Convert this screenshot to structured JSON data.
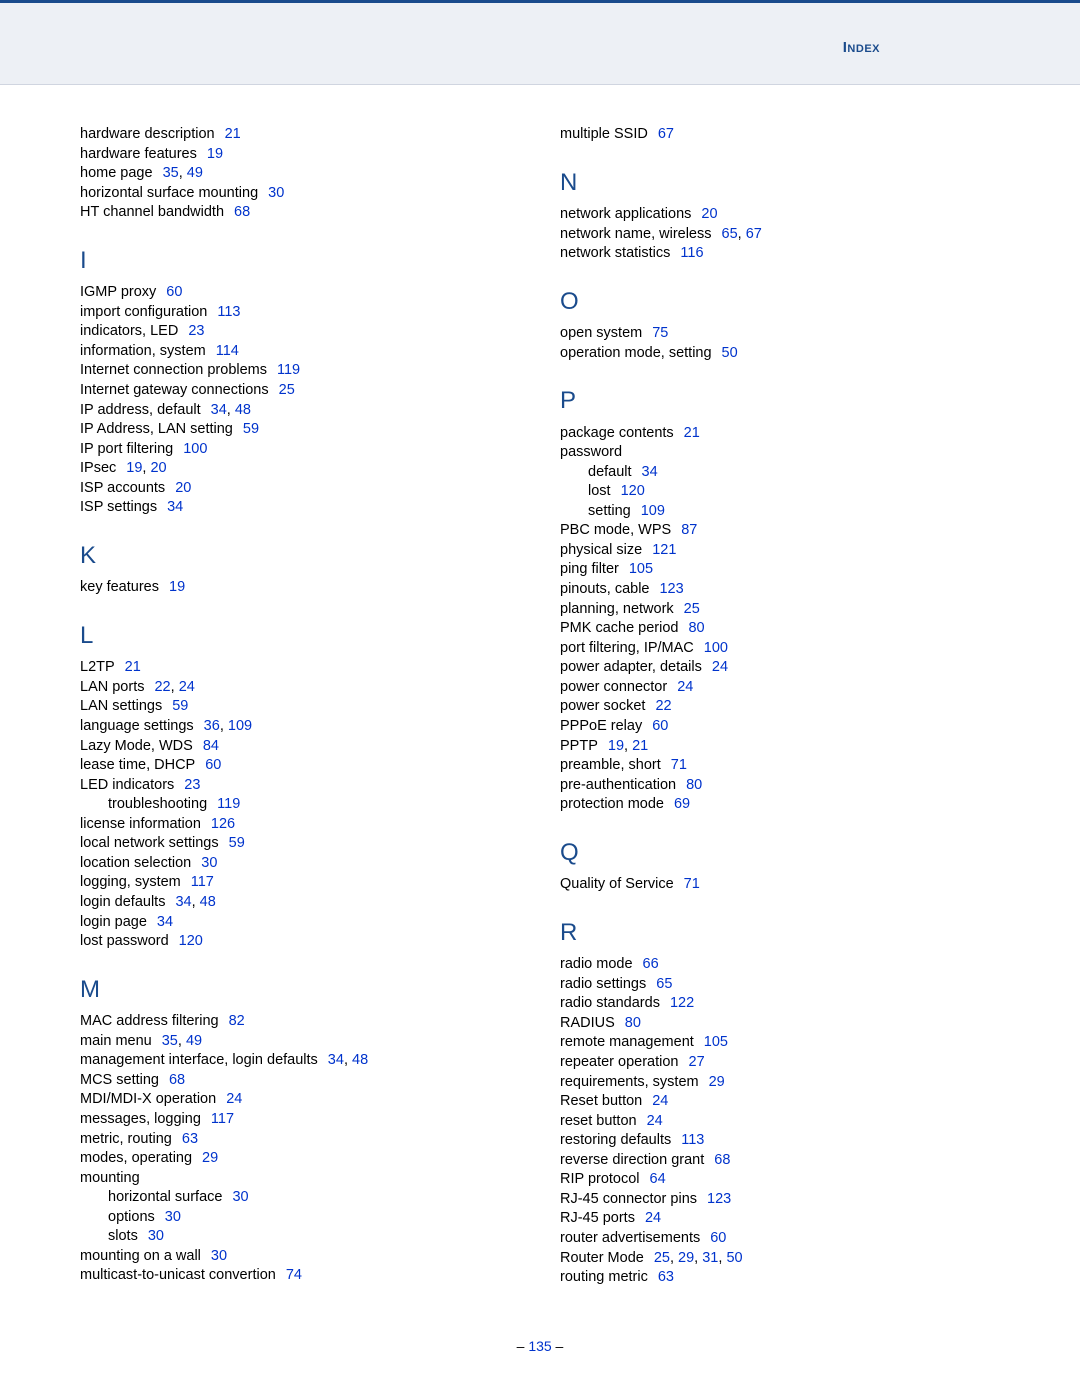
{
  "header": {
    "title": "Index"
  },
  "footer": {
    "page": "135"
  },
  "left": {
    "pre": [
      {
        "t": "hardware description",
        "p": [
          "21"
        ]
      },
      {
        "t": "hardware features",
        "p": [
          "19"
        ]
      },
      {
        "t": "home page",
        "p": [
          "35",
          "49"
        ]
      },
      {
        "t": "horizontal surface mounting",
        "p": [
          "30"
        ]
      },
      {
        "t": "HT channel bandwidth",
        "p": [
          "68"
        ]
      }
    ],
    "I": [
      {
        "t": "IGMP proxy",
        "p": [
          "60"
        ]
      },
      {
        "t": "import configuration",
        "p": [
          "113"
        ]
      },
      {
        "t": "indicators, LED",
        "p": [
          "23"
        ]
      },
      {
        "t": "information, system",
        "p": [
          "114"
        ]
      },
      {
        "t": "Internet connection problems",
        "p": [
          "119"
        ]
      },
      {
        "t": "Internet gateway connections",
        "p": [
          "25"
        ]
      },
      {
        "t": "IP address, default",
        "p": [
          "34",
          "48"
        ]
      },
      {
        "t": "IP Address, LAN setting",
        "p": [
          "59"
        ]
      },
      {
        "t": "IP port filtering",
        "p": [
          "100"
        ]
      },
      {
        "t": "IPsec",
        "p": [
          "19",
          "20"
        ]
      },
      {
        "t": "ISP accounts",
        "p": [
          "20"
        ]
      },
      {
        "t": "ISP settings",
        "p": [
          "34"
        ]
      }
    ],
    "K": [
      {
        "t": "key features",
        "p": [
          "19"
        ]
      }
    ],
    "L": [
      {
        "t": "L2TP",
        "p": [
          "21"
        ]
      },
      {
        "t": "LAN ports",
        "p": [
          "22",
          "24"
        ]
      },
      {
        "t": "LAN settings",
        "p": [
          "59"
        ]
      },
      {
        "t": "language settings",
        "p": [
          "36",
          "109"
        ]
      },
      {
        "t": "Lazy Mode, WDS",
        "p": [
          "84"
        ]
      },
      {
        "t": "lease time, DHCP",
        "p": [
          "60"
        ]
      },
      {
        "t": "LED indicators",
        "p": [
          "23"
        ]
      },
      {
        "t": "troubleshooting",
        "p": [
          "119"
        ],
        "sub": true
      },
      {
        "t": "license information",
        "p": [
          "126"
        ]
      },
      {
        "t": "local network settings",
        "p": [
          "59"
        ]
      },
      {
        "t": "location selection",
        "p": [
          "30"
        ]
      },
      {
        "t": "logging, system",
        "p": [
          "117"
        ]
      },
      {
        "t": "login defaults",
        "p": [
          "34",
          "48"
        ]
      },
      {
        "t": "login page",
        "p": [
          "34"
        ]
      },
      {
        "t": "lost password",
        "p": [
          "120"
        ]
      }
    ],
    "M": [
      {
        "t": "MAC address filtering",
        "p": [
          "82"
        ]
      },
      {
        "t": "main menu",
        "p": [
          "35",
          "49"
        ]
      },
      {
        "t": "management interface, login defaults",
        "p": [
          "34",
          "48"
        ]
      },
      {
        "t": "MCS setting",
        "p": [
          "68"
        ]
      },
      {
        "t": "MDI/MDI-X operation",
        "p": [
          "24"
        ]
      },
      {
        "t": "messages, logging",
        "p": [
          "117"
        ]
      },
      {
        "t": "metric, routing",
        "p": [
          "63"
        ]
      },
      {
        "t": "modes, operating",
        "p": [
          "29"
        ]
      },
      {
        "t": "mounting",
        "p": []
      },
      {
        "t": "horizontal surface",
        "p": [
          "30"
        ],
        "sub": true
      },
      {
        "t": "options",
        "p": [
          "30"
        ],
        "sub": true
      },
      {
        "t": "slots",
        "p": [
          "30"
        ],
        "sub": true
      },
      {
        "t": "mounting on a wall",
        "p": [
          "30"
        ]
      },
      {
        "t": "multicast-to-unicast convertion",
        "p": [
          "74"
        ]
      }
    ]
  },
  "right": {
    "pre": [
      {
        "t": "multiple SSID",
        "p": [
          "67"
        ]
      }
    ],
    "N": [
      {
        "t": "network applications",
        "p": [
          "20"
        ]
      },
      {
        "t": "network name, wireless",
        "p": [
          "65",
          "67"
        ]
      },
      {
        "t": "network statistics",
        "p": [
          "116"
        ]
      }
    ],
    "O": [
      {
        "t": "open system",
        "p": [
          "75"
        ]
      },
      {
        "t": "operation mode, setting",
        "p": [
          "50"
        ]
      }
    ],
    "P": [
      {
        "t": "package contents",
        "p": [
          "21"
        ]
      },
      {
        "t": "password",
        "p": []
      },
      {
        "t": "default",
        "p": [
          "34"
        ],
        "sub": true
      },
      {
        "t": "lost",
        "p": [
          "120"
        ],
        "sub": true
      },
      {
        "t": "setting",
        "p": [
          "109"
        ],
        "sub": true
      },
      {
        "t": "PBC mode, WPS",
        "p": [
          "87"
        ]
      },
      {
        "t": "physical size",
        "p": [
          "121"
        ]
      },
      {
        "t": "ping filter",
        "p": [
          "105"
        ]
      },
      {
        "t": "pinouts, cable",
        "p": [
          "123"
        ]
      },
      {
        "t": "planning, network",
        "p": [
          "25"
        ]
      },
      {
        "t": "PMK cache period",
        "p": [
          "80"
        ]
      },
      {
        "t": "port filtering, IP/MAC",
        "p": [
          "100"
        ]
      },
      {
        "t": "power adapter, details",
        "p": [
          "24"
        ]
      },
      {
        "t": "power connector",
        "p": [
          "24"
        ]
      },
      {
        "t": "power socket",
        "p": [
          "22"
        ]
      },
      {
        "t": "PPPoE relay",
        "p": [
          "60"
        ]
      },
      {
        "t": "PPTP",
        "p": [
          "19",
          "21"
        ]
      },
      {
        "t": "preamble, short",
        "p": [
          "71"
        ]
      },
      {
        "t": "pre-authentication",
        "p": [
          "80"
        ]
      },
      {
        "t": "protection mode",
        "p": [
          "69"
        ]
      }
    ],
    "Q": [
      {
        "t": "Quality of Service",
        "p": [
          "71"
        ]
      }
    ],
    "R": [
      {
        "t": "radio mode",
        "p": [
          "66"
        ]
      },
      {
        "t": "radio settings",
        "p": [
          "65"
        ]
      },
      {
        "t": "radio standards",
        "p": [
          "122"
        ]
      },
      {
        "t": "RADIUS",
        "p": [
          "80"
        ]
      },
      {
        "t": "remote management",
        "p": [
          "105"
        ]
      },
      {
        "t": "repeater operation",
        "p": [
          "27"
        ]
      },
      {
        "t": "requirements, system",
        "p": [
          "29"
        ]
      },
      {
        "t": "Reset button",
        "p": [
          "24"
        ]
      },
      {
        "t": "reset button",
        "p": [
          "24"
        ]
      },
      {
        "t": "restoring defaults",
        "p": [
          "113"
        ]
      },
      {
        "t": "reverse direction grant",
        "p": [
          "68"
        ]
      },
      {
        "t": "RIP protocol",
        "p": [
          "64"
        ]
      },
      {
        "t": "RJ-45 connector pins",
        "p": [
          "123"
        ]
      },
      {
        "t": "RJ-45 ports",
        "p": [
          "24"
        ]
      },
      {
        "t": "router advertisements",
        "p": [
          "60"
        ]
      },
      {
        "t": "Router Mode",
        "p": [
          "25",
          "29",
          "31",
          "50"
        ]
      },
      {
        "t": "routing metric",
        "p": [
          "63"
        ]
      }
    ]
  }
}
